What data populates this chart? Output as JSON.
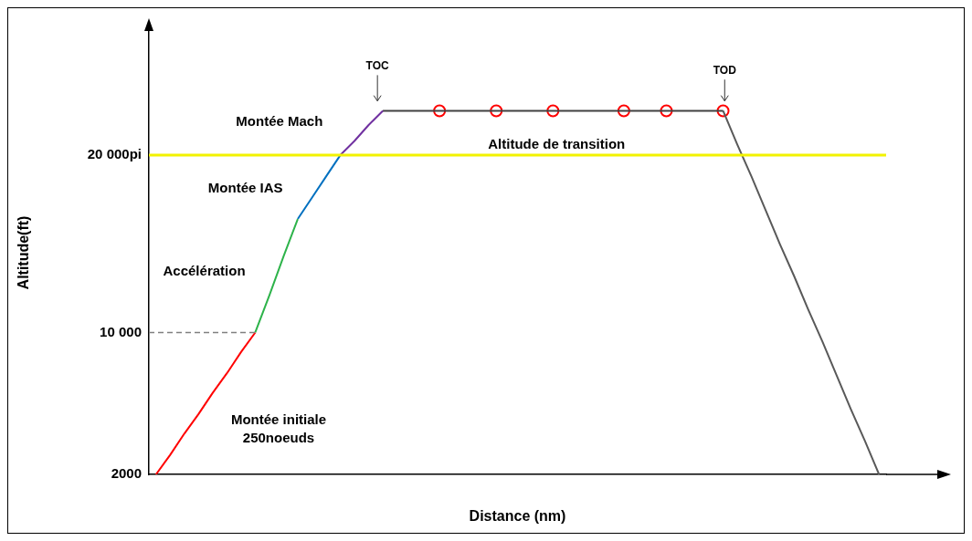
{
  "chart_data": {
    "type": "line",
    "xlabel": "Distance (nm)",
    "ylabel": "Altitude(ft)",
    "categories": [
      null,
      null,
      null,
      null,
      null,
      null,
      null,
      null,
      null,
      null,
      null,
      null,
      null,
      null,
      null,
      null,
      null,
      null,
      null,
      null,
      null,
      null,
      null,
      null,
      null,
      null,
      null,
      null,
      null,
      null,
      null,
      null,
      null,
      null,
      null,
      null,
      null,
      null,
      null,
      null,
      null,
      null,
      null,
      null,
      null,
      null,
      null,
      null,
      null,
      null,
      null,
      null
    ],
    "ylim": [
      2000,
      27000
    ],
    "yticks": [
      2000,
      {
        "value": 10000,
        "label": "10 000"
      },
      {
        "value": 20000,
        "label": "20 000pi"
      }
    ],
    "tick_labels": "y",
    "grid": false,
    "legend": false,
    "series": [
      {
        "color": "#ff0000",
        "values": [
          2000,
          3100,
          4300,
          5400,
          6600,
          7700,
          8900,
          10000,
          null,
          null,
          null,
          null,
          null,
          null,
          null,
          null,
          null,
          null,
          null,
          null,
          null,
          null,
          null,
          null,
          null,
          null,
          null,
          null,
          null,
          null,
          null,
          null,
          null,
          null,
          null,
          null,
          null,
          null,
          null,
          null,
          null,
          null,
          null,
          null,
          null,
          null,
          null,
          null,
          null,
          null,
          null,
          null
        ]
      },
      {
        "color": "#2db34a",
        "values": [
          null,
          null,
          null,
          null,
          null,
          null,
          null,
          10000,
          12100,
          14300,
          16400,
          null,
          null,
          null,
          null,
          null,
          null,
          null,
          null,
          null,
          null,
          null,
          null,
          null,
          null,
          null,
          null,
          null,
          null,
          null,
          null,
          null,
          null,
          null,
          null,
          null,
          null,
          null,
          null,
          null,
          null,
          null,
          null,
          null,
          null,
          null,
          null,
          null,
          null,
          null,
          null,
          null
        ]
      },
      {
        "color": "#0070c0",
        "values": [
          null,
          null,
          null,
          null,
          null,
          null,
          null,
          null,
          null,
          null,
          16400,
          17600,
          18800,
          20000,
          null,
          null,
          null,
          null,
          null,
          null,
          null,
          null,
          null,
          null,
          null,
          null,
          null,
          null,
          null,
          null,
          null,
          null,
          null,
          null,
          null,
          null,
          null,
          null,
          null,
          null,
          null,
          null,
          null,
          null,
          null,
          null,
          null,
          null,
          null,
          null,
          null,
          null
        ]
      },
      {
        "color": "#7030a0",
        "values": [
          null,
          null,
          null,
          null,
          null,
          null,
          null,
          null,
          null,
          null,
          null,
          null,
          null,
          20000,
          20800,
          21700,
          22500,
          null,
          null,
          null,
          null,
          null,
          null,
          null,
          null,
          null,
          null,
          null,
          null,
          null,
          null,
          null,
          null,
          null,
          null,
          null,
          null,
          null,
          null,
          null,
          null,
          null,
          null,
          null,
          null,
          null,
          null,
          null,
          null,
          null,
          null,
          null
        ]
      },
      {
        "color": "#404040",
        "values": [
          null,
          null,
          null,
          null,
          null,
          null,
          null,
          null,
          null,
          null,
          null,
          null,
          null,
          null,
          null,
          null,
          22500,
          22500,
          22500,
          22500,
          22500,
          22500,
          22500,
          22500,
          22500,
          22500,
          22500,
          22500,
          22500,
          22500,
          22500,
          22500,
          22500,
          22500,
          22500,
          22500,
          22500,
          22500,
          22500,
          22500,
          22500,
          null,
          null,
          null,
          null,
          null,
          null,
          null,
          null,
          null,
          null,
          null
        ]
      },
      {
        "color": "#595959",
        "values": [
          null,
          null,
          null,
          null,
          null,
          null,
          null,
          null,
          null,
          null,
          null,
          null,
          null,
          null,
          null,
          null,
          null,
          null,
          null,
          null,
          null,
          null,
          null,
          null,
          null,
          null,
          null,
          null,
          null,
          null,
          null,
          null,
          null,
          null,
          null,
          null,
          null,
          null,
          null,
          null,
          22500,
          20600,
          18800,
          16900,
          15000,
          13200,
          11300,
          9500,
          7600,
          5700,
          3900,
          2000
        ]
      },
      {
        "type": "scatter",
        "color": "#ff0000",
        "marker": "circle",
        "values": [
          null,
          null,
          null,
          null,
          null,
          null,
          null,
          null,
          null,
          null,
          null,
          null,
          null,
          null,
          null,
          null,
          null,
          null,
          null,
          null,
          22500,
          null,
          null,
          null,
          22500,
          null,
          null,
          null,
          22500,
          null,
          null,
          null,
          null,
          22500,
          null,
          null,
          22500,
          null,
          null,
          null,
          22500,
          null,
          null,
          null,
          null,
          null,
          null,
          null,
          null,
          null,
          null,
          null
        ]
      }
    ],
    "ref_lines": [
      {
        "axis": "y",
        "value": 20000,
        "label": "Altitude de transition",
        "color": "#f2f200"
      },
      {
        "axis": "y",
        "value": 10000,
        "color": "#808080",
        "line_style": "dashed"
      }
    ],
    "annotations": [
      "Montée Mach",
      "Montée IAS",
      "Accélération",
      "Montée initiale\n250noeuds",
      "TOC",
      "TOD"
    ]
  }
}
